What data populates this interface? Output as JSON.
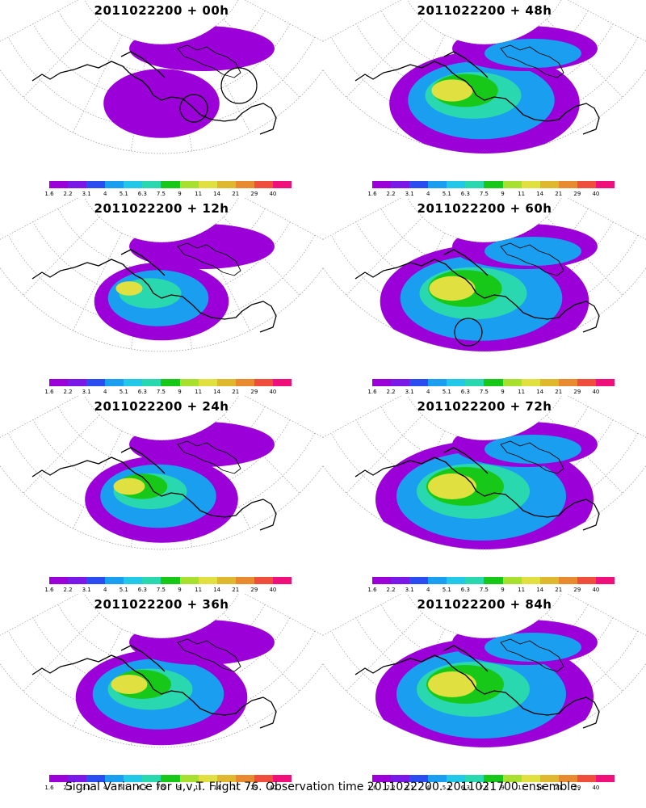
{
  "figure": {
    "caption": "Signal Variance for u,v,T. Flight 76. Observation time 2011022200. 2011021700 ensemble.",
    "colorbar": {
      "labels": [
        "1.6",
        "2.2",
        "3.1",
        "4",
        "5.1",
        "6.3",
        "7.5",
        "9",
        "11",
        "14",
        "21",
        "29",
        "40"
      ],
      "colors": [
        "#9b00d8",
        "#7a18e8",
        "#2a4cf0",
        "#1a9ff0",
        "#22c8e8",
        "#2ad8b0",
        "#18c818",
        "#a8e030",
        "#e0e040",
        "#e0b830",
        "#e88a30",
        "#f04e3c",
        "#f0107a"
      ]
    },
    "panels": [
      {
        "id": "p00",
        "title": "2011022200 + 00h",
        "forecast_hour": 0,
        "col": 0,
        "row": 0,
        "circles": 2
      },
      {
        "id": "p48",
        "title": "2011022200 + 48h",
        "forecast_hour": 48,
        "col": 1,
        "row": 0,
        "circles": 0
      },
      {
        "id": "p12",
        "title": "2011022200 + 12h",
        "forecast_hour": 12,
        "col": 0,
        "row": 1,
        "circles": 0
      },
      {
        "id": "p60",
        "title": "2011022200 + 60h",
        "forecast_hour": 60,
        "col": 1,
        "row": 1,
        "circles": 1
      },
      {
        "id": "p24",
        "title": "2011022200 + 24h",
        "forecast_hour": 24,
        "col": 0,
        "row": 2,
        "circles": 0
      },
      {
        "id": "p72",
        "title": "2011022200 + 72h",
        "forecast_hour": 72,
        "col": 1,
        "row": 2,
        "circles": 0
      },
      {
        "id": "p36",
        "title": "2011022200 + 36h",
        "forecast_hour": 36,
        "col": 0,
        "row": 3,
        "circles": 0
      },
      {
        "id": "p84",
        "title": "2011022200 + 84h",
        "forecast_hour": 84,
        "col": 1,
        "row": 3,
        "circles": 0
      }
    ]
  }
}
